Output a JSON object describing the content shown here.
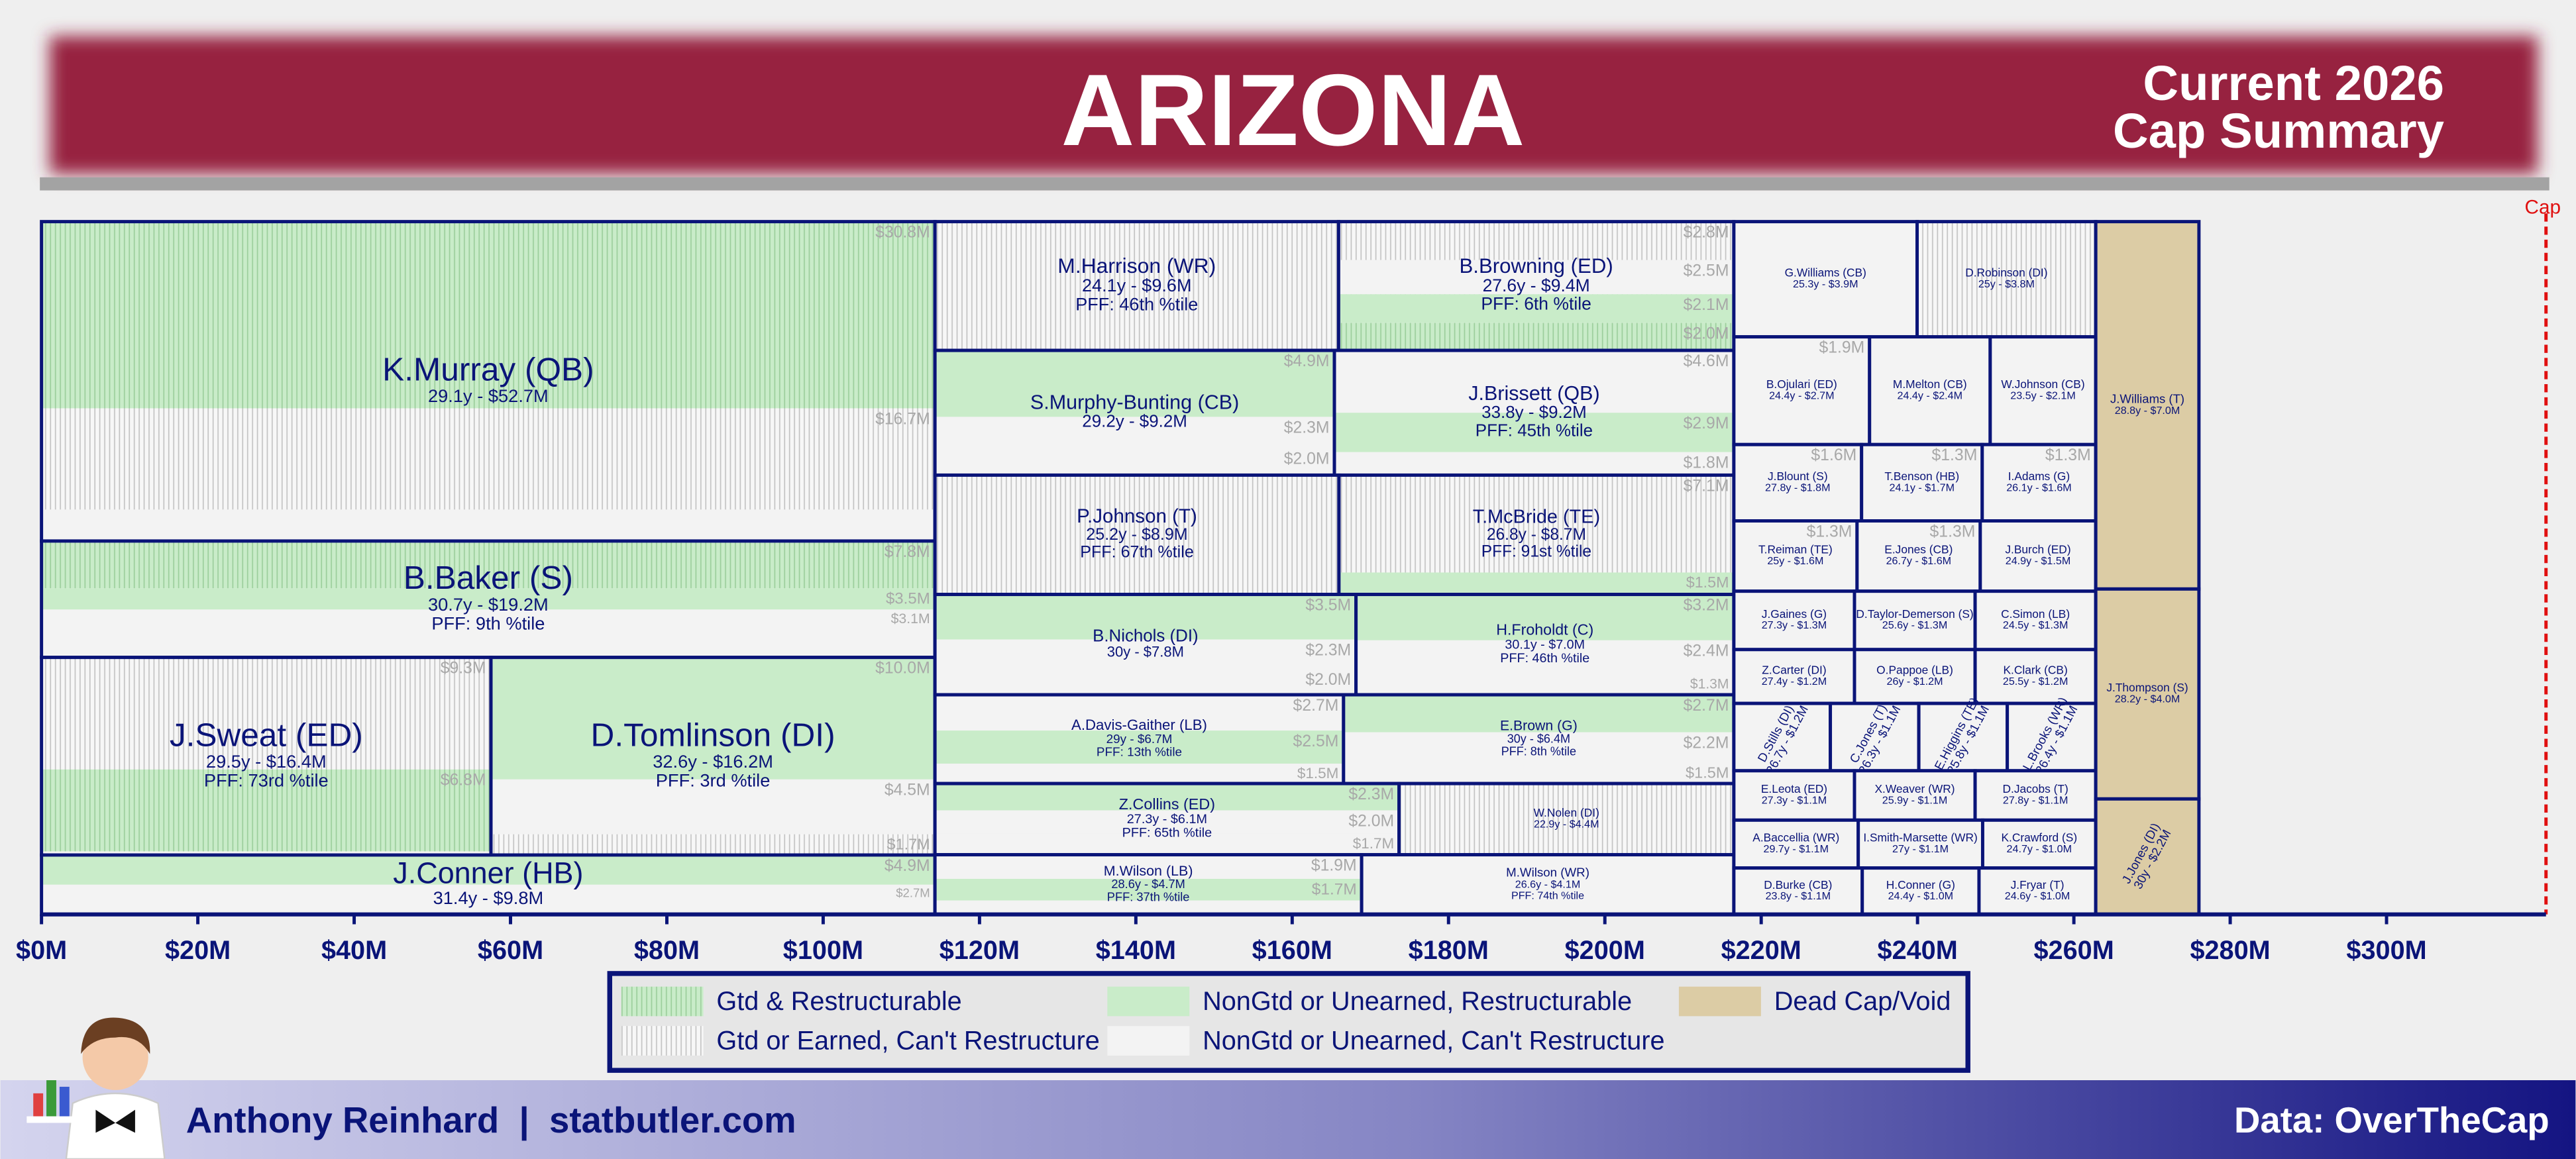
{
  "chart_data": {
    "type": "treemap",
    "title": "ARIZONA",
    "subtitle": [
      "Current 2026",
      "Cap Summary"
    ],
    "xlim": [
      0,
      320.4
    ],
    "xticks": [
      {
        "value": 0,
        "label": "$0M"
      },
      {
        "value": 20,
        "label": "$20M"
      },
      {
        "value": 40,
        "label": "$40M"
      },
      {
        "value": 60,
        "label": "$60M"
      },
      {
        "value": 80,
        "label": "$80M"
      },
      {
        "value": 100,
        "label": "$100M"
      },
      {
        "value": 120,
        "label": "$120M"
      },
      {
        "value": 140,
        "label": "$140M"
      },
      {
        "value": 160,
        "label": "$160M"
      },
      {
        "value": 180,
        "label": "$180M"
      },
      {
        "value": 200,
        "label": "$200M"
      },
      {
        "value": 220,
        "label": "$220M"
      },
      {
        "value": 240,
        "label": "$240M"
      },
      {
        "value": 260,
        "label": "$260M"
      },
      {
        "value": 280,
        "label": "$280M"
      },
      {
        "value": 300,
        "label": "$300M"
      }
    ],
    "cap": {
      "value": 320.4,
      "label": "Cap",
      "color": "#e01010"
    },
    "legend": [
      {
        "label": "Gtd & Restructurable",
        "color": "#c9ecc9",
        "hatch": "#9ccf9c"
      },
      {
        "label": "Gtd or Earned, Can't Restructure",
        "color": "#f7f7f7",
        "hatch": "#c4c4c4"
      },
      {
        "label": "NonGtd or Unearned, Restructurable",
        "color": "#c9ecc9"
      },
      {
        "label": "NonGtd or Unearned, Can't Restructure",
        "color": "#f3f3f3"
      },
      {
        "label": "Dead Cap/Void",
        "color": "#dccca5"
      }
    ],
    "columns": [
      {
        "rows": [
          [
            {
              "name": "K.Murray (QB)",
              "label": "29.1y - $52.7M",
              "value": 52.7,
              "kind": 3,
              "segments": [
                {
                  "value": 30.8,
                  "value_label": "$30.8M",
                  "kind": 0
                },
                {
                  "value": 16.7,
                  "value_label": "$16.7M",
                  "kind": 1
                }
              ]
            }
          ],
          [
            {
              "name": "B.Baker (S)",
              "label": "30.7y - $19.2M",
              "pff": "PFF: 9th %tile",
              "value": 19.2,
              "kind": 3,
              "segments": [
                {
                  "value": 7.8,
                  "value_label": "$7.8M",
                  "kind": 0
                },
                {
                  "value": 3.5,
                  "value_label": "$3.5M",
                  "kind": 2
                },
                {
                  "value": 3.1,
                  "value_label": "$3.1M",
                  "kind": 3
                }
              ]
            }
          ],
          [
            {
              "name": "J.Sweat (ED)",
              "label": "29.5y - $16.4M",
              "pff": "PFF: 73rd %tile",
              "value": 16.4,
              "kind": 3,
              "segments": [
                {
                  "value": 9.3,
                  "value_label": "$9.3M",
                  "kind": 1
                },
                {
                  "value": 6.8,
                  "value_label": "$6.8M",
                  "kind": 0
                }
              ]
            },
            {
              "name": "D.Tomlinson (DI)",
              "label": "32.6y - $16.2M",
              "pff": "PFF: 3rd %tile",
              "value": 16.2,
              "kind": 3,
              "segments": [
                {
                  "value": 10.0,
                  "value_label": "$10.0M",
                  "kind": 2
                },
                {
                  "value": 4.5,
                  "value_label": "$4.5M",
                  "kind": 3
                },
                {
                  "value": 1.7,
                  "value_label": "$1.7M",
                  "kind": 1
                }
              ]
            }
          ],
          [
            {
              "name": "J.Conner (HB)",
              "label": "31.4y - $9.8M",
              "value": 9.8,
              "kind": 3,
              "segments": [
                {
                  "value": 4.9,
                  "value_label": "$4.9M",
                  "kind": 2
                },
                {
                  "value": 2.7,
                  "value_label": "$2.7M",
                  "kind": 3
                }
              ]
            }
          ]
        ]
      },
      {
        "rows": [
          [
            {
              "name": "M.Harrison (WR)",
              "label": "24.1y - $9.6M",
              "pff": "PFF: 46th %tile",
              "value": 9.6,
              "kind": 1
            },
            {
              "name": "B.Browning (ED)",
              "label": "27.6y - $9.4M",
              "pff": "PFF: 6th %tile",
              "value": 9.4,
              "kind": 1,
              "segments": [
                {
                  "value": 2.8,
                  "value_label": "$2.8M",
                  "kind": 1
                },
                {
                  "value": 2.5,
                  "value_label": "$2.5M",
                  "kind": 3
                },
                {
                  "value": 2.1,
                  "value_label": "$2.1M",
                  "kind": 2
                },
                {
                  "value": 2.0,
                  "value_label": "$2.0M",
                  "kind": 0
                }
              ]
            }
          ],
          [
            {
              "name": "S.Murphy-Bunting (CB)",
              "label": "29.2y - $9.2M",
              "value": 9.2,
              "kind": 3,
              "segments": [
                {
                  "value": 4.9,
                  "value_label": "$4.9M",
                  "kind": 2
                },
                {
                  "value": 2.3,
                  "value_label": "$2.3M",
                  "kind": 3
                },
                {
                  "value": 2.0,
                  "value_label": "$2.0M",
                  "kind": 3
                }
              ]
            },
            {
              "name": "J.Brissett (QB)",
              "label": "33.8y - $9.2M",
              "pff": "PFF: 45th %tile",
              "value": 9.2,
              "kind": 3,
              "segments": [
                {
                  "value": 4.6,
                  "value_label": "$4.6M",
                  "kind": 3
                },
                {
                  "value": 2.9,
                  "value_label": "$2.9M",
                  "kind": 2
                },
                {
                  "value": 1.8,
                  "value_label": "$1.8M",
                  "kind": 3
                }
              ]
            }
          ],
          [
            {
              "name": "P.Johnson (T)",
              "label": "25.2y - $8.9M",
              "pff": "PFF: 67th %tile",
              "value": 8.9,
              "kind": 1
            },
            {
              "name": "T.McBride (TE)",
              "label": "26.8y - $8.7M",
              "pff": "PFF: 91st %tile",
              "value": 8.7,
              "kind": 1,
              "segments": [
                {
                  "value": 7.1,
                  "value_label": "$7.1M",
                  "kind": 1
                },
                {
                  "value": 1.5,
                  "value_label": "$1.5M",
                  "kind": 2
                }
              ]
            }
          ],
          [
            {
              "name": "B.Nichols (DI)",
              "label": "30y - $7.8M",
              "value": 7.8,
              "kind": 3,
              "segments": [
                {
                  "value": 3.5,
                  "value_label": "$3.5M",
                  "kind": 2
                },
                {
                  "value": 2.3,
                  "value_label": "$2.3M",
                  "kind": 3
                },
                {
                  "value": 2.0,
                  "value_label": "$2.0M",
                  "kind": 3
                }
              ]
            },
            {
              "name": "H.Froholdt (C)",
              "label": "30.1y - $7.0M",
              "pff": "PFF: 46th %tile",
              "value": 7.0,
              "kind": 3,
              "segments": [
                {
                  "value": 3.2,
                  "value_label": "$3.2M",
                  "kind": 2
                },
                {
                  "value": 2.4,
                  "value_label": "$2.4M",
                  "kind": 3
                },
                {
                  "value": 1.3,
                  "value_label": "$1.3M",
                  "kind": 3
                }
              ]
            }
          ],
          [
            {
              "name": "A.Davis-Gaither (LB)",
              "label": "29y - $6.7M",
              "pff": "PFF: 13th %tile",
              "value": 6.7,
              "kind": 3,
              "segments": [
                {
                  "value": 2.7,
                  "value_label": "$2.7M",
                  "kind": 3
                },
                {
                  "value": 2.5,
                  "value_label": "$2.5M",
                  "kind": 2
                },
                {
                  "value": 1.5,
                  "value_label": "$1.5M",
                  "kind": 3
                }
              ]
            },
            {
              "name": "E.Brown (G)",
              "label": "30y - $6.4M",
              "pff": "PFF: 8th %tile",
              "value": 6.4,
              "kind": 3,
              "segments": [
                {
                  "value": 2.7,
                  "value_label": "$2.7M",
                  "kind": 2
                },
                {
                  "value": 2.2,
                  "value_label": "$2.2M",
                  "kind": 3
                },
                {
                  "value": 1.5,
                  "value_label": "$1.5M",
                  "kind": 3
                }
              ]
            }
          ],
          [
            {
              "name": "Z.Collins (ED)",
              "label": "27.3y - $6.1M",
              "pff": "PFF: 65th %tile",
              "value": 6.1,
              "kind": 3,
              "segments": [
                {
                  "value": 2.3,
                  "value_label": "$2.3M",
                  "kind": 2
                },
                {
                  "value": 2.0,
                  "value_label": "$2.0M",
                  "kind": 3
                },
                {
                  "value": 1.7,
                  "value_label": "$1.7M",
                  "kind": 3
                }
              ]
            },
            {
              "name": "W.Nolen (DI)",
              "label": "22.9y - $4.4M",
              "value": 4.4,
              "kind": 1
            }
          ],
          [
            {
              "name": "M.Wilson (LB)",
              "label": "28.6y - $4.7M",
              "pff": "PFF: 37th %tile",
              "value": 4.7,
              "kind": 3,
              "segments": [
                {
                  "value": 1.9,
                  "value_label": "$1.9M",
                  "kind": 3
                },
                {
                  "value": 1.7,
                  "value_label": "$1.7M",
                  "kind": 2
                }
              ]
            },
            {
              "name": "M.Wilson (WR)",
              "label": "26.6y - $4.1M",
              "pff": "PFF: 74th %tile",
              "value": 4.1,
              "kind": 3
            }
          ]
        ]
      },
      {
        "rows": [
          [
            {
              "name": "G.Williams (CB)",
              "label": "25.3y - $3.9M",
              "value": 3.9,
              "kind": 3
            },
            {
              "name": "D.Robinson (DI)",
              "label": "25y - $3.8M",
              "value": 3.8,
              "kind": 1
            }
          ],
          [
            {
              "name": "B.Ojulari (ED)",
              "label": "24.4y - $2.7M",
              "value": 2.7,
              "kind": 3,
              "segments": [
                {
                  "value": 1.9,
                  "value_label": "$1.9M",
                  "kind": 3
                }
              ]
            },
            {
              "name": "M.Melton (CB)",
              "label": "24.4y - $2.4M",
              "value": 2.4,
              "kind": 3
            },
            {
              "name": "W.Johnson (CB)",
              "label": "23.5y - $2.1M",
              "value": 2.1,
              "kind": 3
            }
          ],
          [
            {
              "name": "J.Blount (S)",
              "label": "27.8y - $1.8M",
              "value": 1.8,
              "kind": 3,
              "segments": [
                {
                  "value": 1.6,
                  "value_label": "$1.6M",
                  "kind": 3
                }
              ]
            },
            {
              "name": "T.Benson (HB)",
              "label": "24.1y - $1.7M",
              "value": 1.7,
              "kind": 3,
              "segments": [
                {
                  "value": 1.3,
                  "value_label": "$1.3M",
                  "kind": 3
                }
              ]
            },
            {
              "name": "I.Adams (G)",
              "label": "26.1y - $1.6M",
              "value": 1.6,
              "kind": 3,
              "segments": [
                {
                  "value": 1.3,
                  "value_label": "$1.3M",
                  "kind": 3
                }
              ]
            }
          ],
          [
            {
              "name": "T.Reiman (TE)",
              "label": "25y - $1.6M",
              "value": 1.6,
              "kind": 3,
              "segments": [
                {
                  "value": 1.3,
                  "value_label": "$1.3M",
                  "kind": 3
                }
              ]
            },
            {
              "name": "E.Jones (CB)",
              "label": "26.7y - $1.6M",
              "value": 1.6,
              "kind": 3,
              "segments": [
                {
                  "value": 1.3,
                  "value_label": "$1.3M",
                  "kind": 3
                }
              ]
            },
            {
              "name": "J.Burch (ED)",
              "label": "24.9y - $1.5M",
              "value": 1.5,
              "kind": 3
            }
          ],
          [
            {
              "name": "J.Gaines (G)",
              "label": "27.3y - $1.3M",
              "value": 1.3,
              "kind": 3
            },
            {
              "name": "D.Taylor-Demerson (S)",
              "label": "25.6y - $1.3M",
              "value": 1.3,
              "kind": 3
            },
            {
              "name": "C.Simon (LB)",
              "label": "24.5y - $1.3M",
              "value": 1.3,
              "kind": 3
            }
          ],
          [
            {
              "name": "Z.Carter (DI)",
              "label": "27.4y - $1.2M",
              "value": 1.2,
              "kind": 3
            },
            {
              "name": "O.Pappoe (LB)",
              "label": "26y - $1.2M",
              "value": 1.2,
              "kind": 3
            },
            {
              "name": "K.Clark (CB)",
              "label": "25.5y - $1.2M",
              "value": 1.2,
              "kind": 3
            }
          ],
          [
            {
              "name": "D.Stills (DI)",
              "label": "26.7y - $1.2M",
              "value": 1.2,
              "kind": 3,
              "rotated": true
            },
            {
              "name": "C.Jones (T)",
              "label": "26.3y - $1.1M",
              "value": 1.1,
              "kind": 3,
              "rotated": true
            },
            {
              "name": "E.Higgins (TE)",
              "label": "25.8y - $1.1M",
              "value": 1.1,
              "kind": 3,
              "rotated": true
            },
            {
              "name": "L.Brooks (WR)",
              "label": "26.4y - $1.1M",
              "value": 1.1,
              "kind": 3,
              "rotated": true
            }
          ],
          [
            {
              "name": "E.Leota (ED)",
              "label": "27.3y - $1.1M",
              "value": 1.1,
              "kind": 3
            },
            {
              "name": "X.Weaver (WR)",
              "label": "25.9y - $1.1M",
              "value": 1.1,
              "kind": 3
            },
            {
              "name": "D.Jacobs (T)",
              "label": "27.8y - $1.1M",
              "value": 1.1,
              "kind": 3
            }
          ],
          [
            {
              "name": "A.Baccellia (WR)",
              "label": "29.7y - $1.1M",
              "value": 1.1,
              "kind": 3
            },
            {
              "name": "I.Smith-Marsette (WR)",
              "label": "27y - $1.1M",
              "value": 1.1,
              "kind": 3
            },
            {
              "name": "K.Crawford (S)",
              "label": "24.7y - $1.0M",
              "value": 1.0,
              "kind": 3
            }
          ],
          [
            {
              "name": "D.Burke (CB)",
              "label": "23.8y - $1.1M",
              "value": 1.1,
              "kind": 3
            },
            {
              "name": "H.Conner (G)",
              "label": "24.4y - $1.0M",
              "value": 1.0,
              "kind": 3
            },
            {
              "name": "J.Fryar (T)",
              "label": "24.6y - $1.0M",
              "value": 1.0,
              "kind": 3
            }
          ]
        ]
      },
      {
        "rows": [
          [
            {
              "name": "J.Williams (T)",
              "label": "28.8y - $7.0M",
              "value": 7.0,
              "kind": 4
            }
          ],
          [
            {
              "name": "J.Thompson (S)",
              "label": "28.2y - $4.0M",
              "value": 4.0,
              "kind": 4
            }
          ],
          [
            {
              "name": "J.Jones (DI)",
              "label": "30y - $2.2M",
              "value": 2.2,
              "kind": 4,
              "rotated": true
            }
          ]
        ]
      }
    ],
    "author": "Anthony Reinhard  |  statbutler.com",
    "source": "Data: OverTheCap"
  }
}
